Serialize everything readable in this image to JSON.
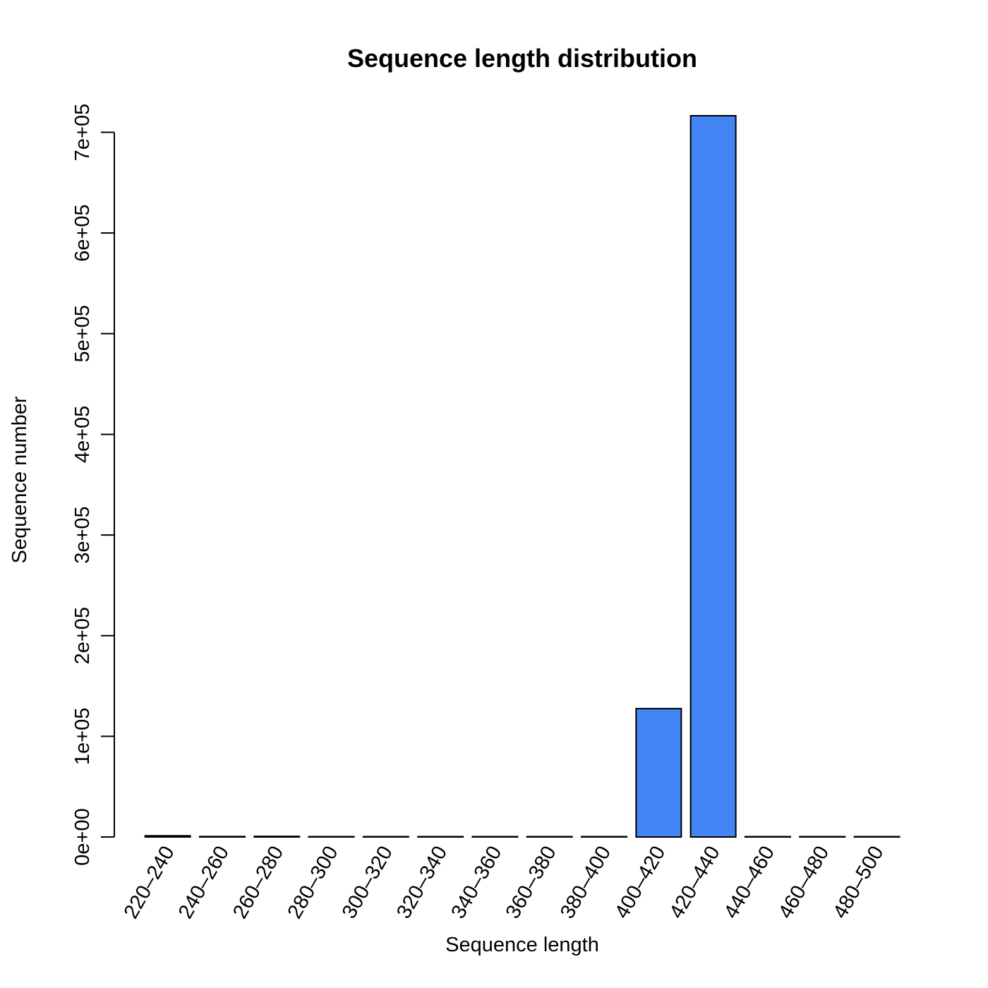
{
  "chart_data": {
    "type": "bar",
    "title": "Sequence length distribution",
    "xlabel": "Sequence length",
    "ylabel": "Sequence number",
    "categories": [
      "220–240",
      "240–260",
      "260–280",
      "280–300",
      "300–320",
      "320–340",
      "340–360",
      "360–380",
      "380–400",
      "400–420",
      "420–440",
      "440–460",
      "460–480",
      "480–500"
    ],
    "values": [
      1200,
      450,
      600,
      300,
      0,
      0,
      0,
      0,
      0,
      127500,
      716500,
      0,
      120,
      150
    ],
    "y_ticks": [
      0,
      100000,
      200000,
      300000,
      400000,
      500000,
      600000,
      700000
    ],
    "y_tick_labels": [
      "0e+00",
      "1e+05",
      "2e+05",
      "3e+05",
      "4e+05",
      "5e+05",
      "6e+05",
      "7e+05"
    ],
    "ylim": [
      0,
      716500
    ],
    "bar_color": "#4285f4",
    "bar_border": "#000000",
    "grid": false,
    "legend": "none"
  }
}
